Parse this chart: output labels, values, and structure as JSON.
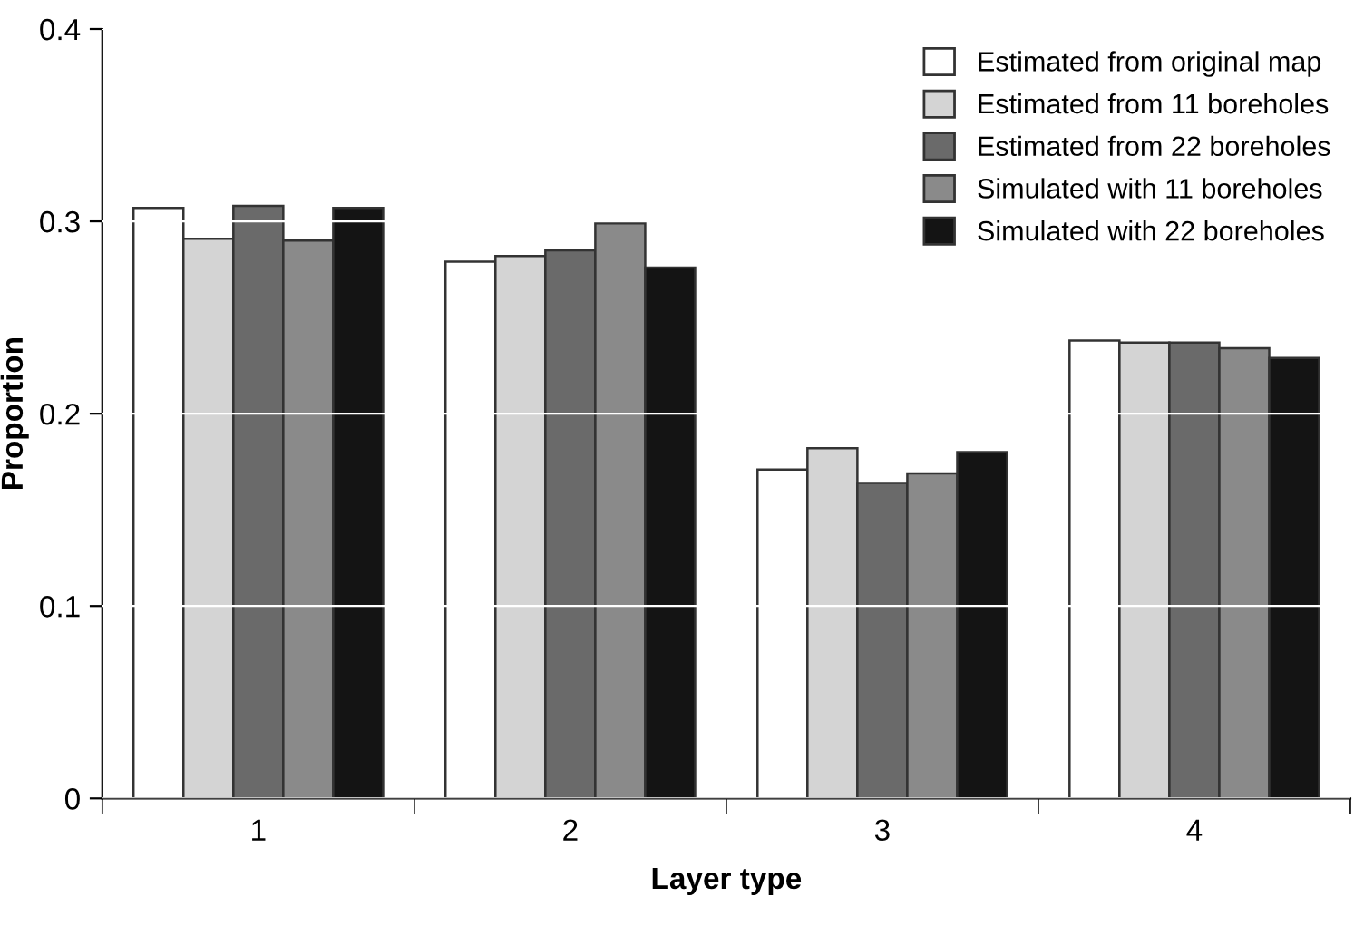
{
  "chart_data": {
    "type": "bar",
    "xlabel": "Layer type",
    "ylabel": "Proportion",
    "categories": [
      "1",
      "2",
      "3",
      "4"
    ],
    "series": [
      {
        "name": "Estimated from original map",
        "color": "#ffffff",
        "values": [
          0.307,
          0.279,
          0.171,
          0.238
        ]
      },
      {
        "name": "Estimated from 11 boreholes",
        "color": "#d4d4d4",
        "values": [
          0.291,
          0.282,
          0.182,
          0.237
        ]
      },
      {
        "name": "Estimated from 22 boreholes",
        "color": "#6a6a6a",
        "values": [
          0.308,
          0.285,
          0.164,
          0.237
        ]
      },
      {
        "name": "Simulated with 11 boreholes",
        "color": "#8a8a8a",
        "values": [
          0.29,
          0.299,
          0.169,
          0.234
        ]
      },
      {
        "name": "Simulated with 22 boreholes",
        "color": "#141414",
        "values": [
          0.307,
          0.276,
          0.18,
          0.229
        ]
      }
    ],
    "ylim": [
      0,
      0.4
    ],
    "yticks": [
      {
        "value": 0,
        "label": "0"
      },
      0.1,
      0.2,
      0.3,
      0.4
    ],
    "grid": "y",
    "legend": "top right"
  }
}
